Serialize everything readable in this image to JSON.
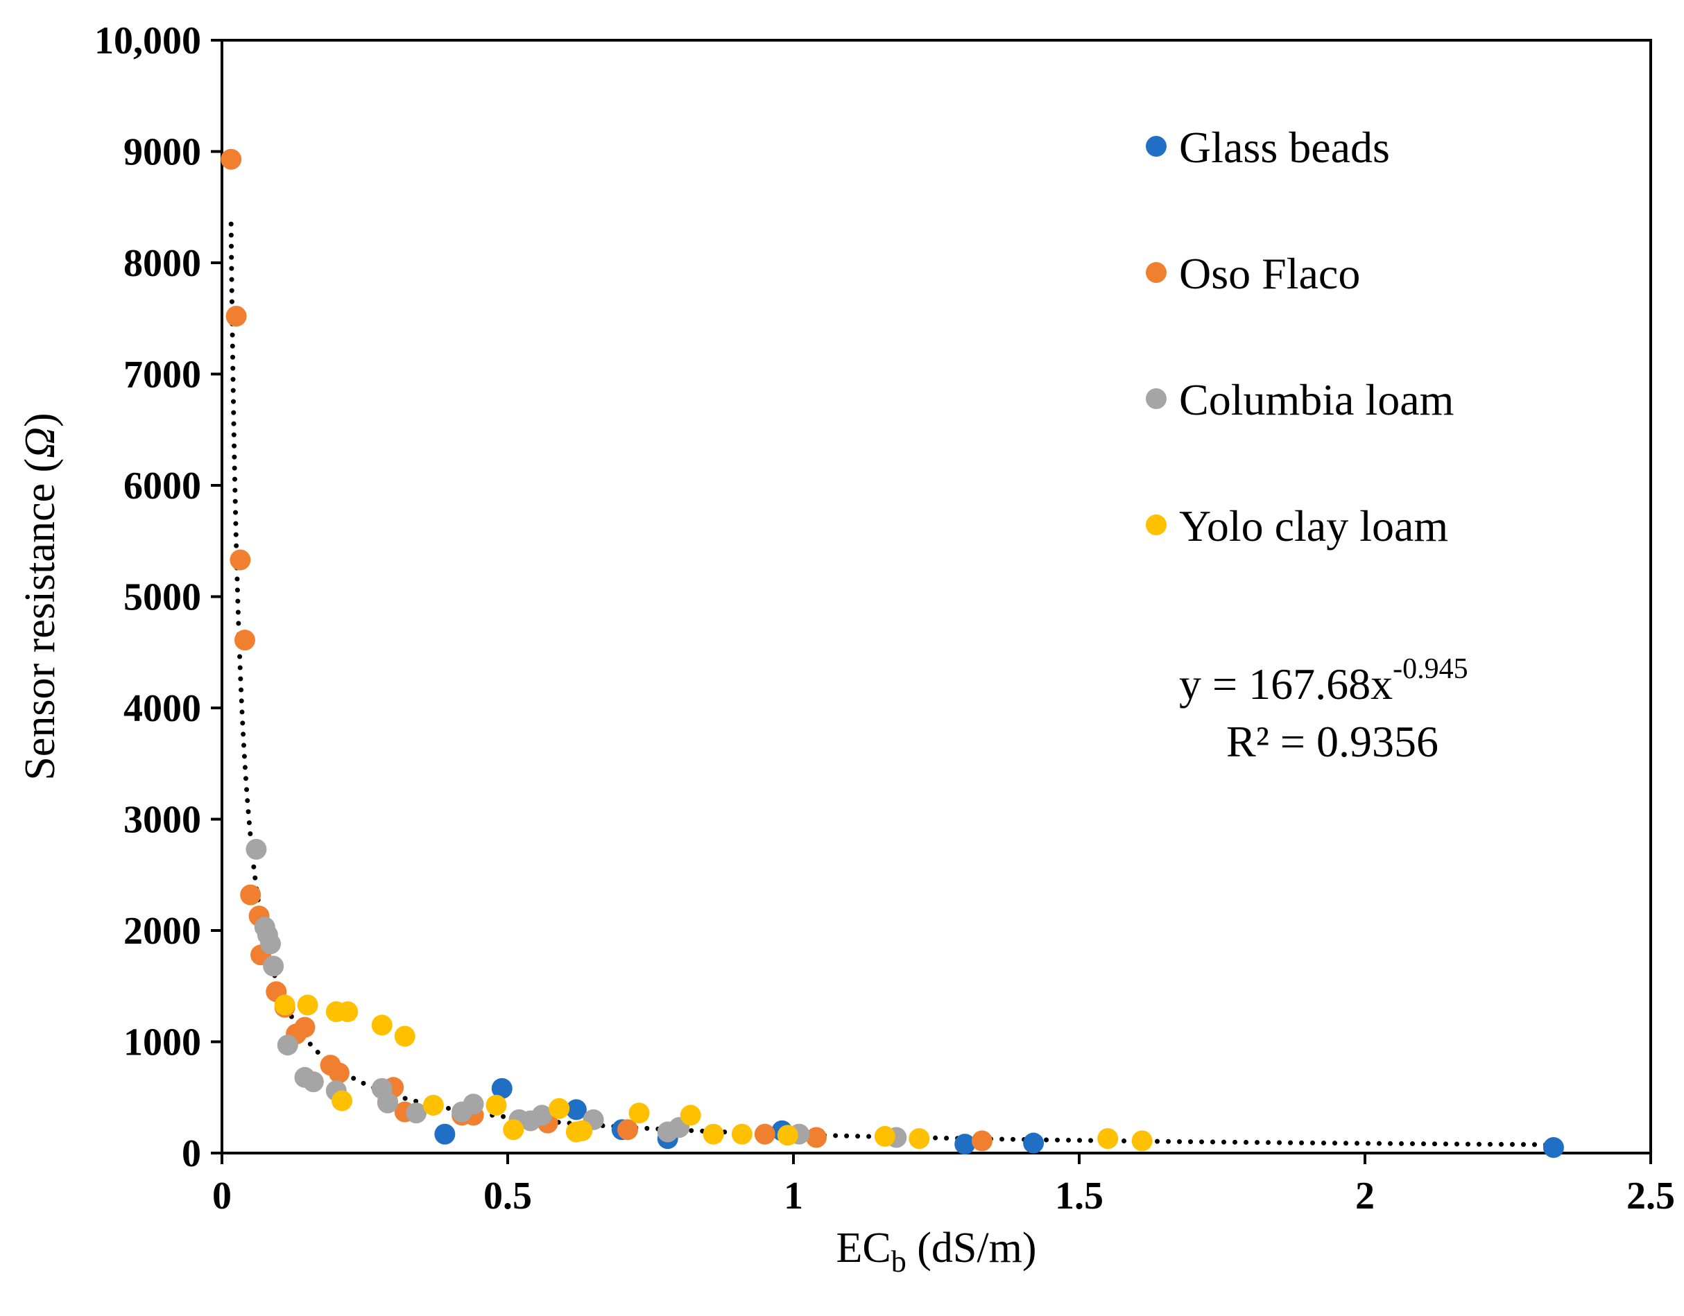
{
  "chart_data": {
    "type": "scatter",
    "xlabel_main": "EC",
    "xlabel_sub": "b",
    "xlabel_unit": " (dS/m)",
    "ylabel_main": "Sensor resistance (",
    "ylabel_omega": "Ω",
    "ylabel_close": ")",
    "xlim": [
      0,
      2.5
    ],
    "ylim": [
      0,
      10000
    ],
    "xticks": [
      0,
      0.5,
      1,
      1.5,
      2,
      2.5
    ],
    "xtick_labels": [
      "0",
      "0.5",
      "1",
      "1.5",
      "2",
      "2.5"
    ],
    "yticks": [
      0,
      1000,
      2000,
      3000,
      4000,
      5000,
      6000,
      7000,
      8000,
      9000,
      10000
    ],
    "ytick_labels": [
      "0",
      "1000",
      "2000",
      "3000",
      "4000",
      "5000",
      "6000",
      "7000",
      "8000",
      "9000",
      "10,000"
    ],
    "legend_position": "top-right",
    "trendline": {
      "type": "power",
      "a": 167.68,
      "b": -0.945,
      "x_start": 0.016,
      "x_end": 2.33,
      "equation_prefix": "y = 167.68x",
      "equation_exponent": "-0.945",
      "r2_text": "R² = 0.9356"
    },
    "series": [
      {
        "name": "Glass beads",
        "color": "#1f6fc5",
        "points": [
          [
            0.39,
            170
          ],
          [
            0.49,
            580
          ],
          [
            0.62,
            390
          ],
          [
            0.7,
            210
          ],
          [
            0.78,
            130
          ],
          [
            0.98,
            200
          ],
          [
            1.3,
            80
          ],
          [
            1.42,
            90
          ],
          [
            2.33,
            50
          ]
        ]
      },
      {
        "name": "Oso  Flaco",
        "color": "#f07f2f",
        "points": [
          [
            0.016,
            8930
          ],
          [
            0.025,
            7520
          ],
          [
            0.032,
            5330
          ],
          [
            0.04,
            4610
          ],
          [
            0.05,
            2320
          ],
          [
            0.065,
            2130
          ],
          [
            0.068,
            1780
          ],
          [
            0.095,
            1450
          ],
          [
            0.11,
            1310
          ],
          [
            0.13,
            1070
          ],
          [
            0.145,
            1130
          ],
          [
            0.19,
            790
          ],
          [
            0.205,
            720
          ],
          [
            0.3,
            590
          ],
          [
            0.29,
            460
          ],
          [
            0.32,
            370
          ],
          [
            0.42,
            340
          ],
          [
            0.44,
            340
          ],
          [
            0.57,
            270
          ],
          [
            0.71,
            210
          ],
          [
            0.95,
            170
          ],
          [
            1.04,
            140
          ],
          [
            1.33,
            110
          ]
        ]
      },
      {
        "name": "Columbia loam",
        "color": "#a5a5a5",
        "points": [
          [
            0.06,
            2730
          ],
          [
            0.075,
            2030
          ],
          [
            0.08,
            1960
          ],
          [
            0.085,
            1880
          ],
          [
            0.09,
            1680
          ],
          [
            0.115,
            970
          ],
          [
            0.145,
            680
          ],
          [
            0.16,
            640
          ],
          [
            0.2,
            560
          ],
          [
            0.28,
            580
          ],
          [
            0.29,
            450
          ],
          [
            0.34,
            360
          ],
          [
            0.42,
            370
          ],
          [
            0.44,
            440
          ],
          [
            0.52,
            300
          ],
          [
            0.54,
            290
          ],
          [
            0.56,
            340
          ],
          [
            0.65,
            300
          ],
          [
            0.78,
            190
          ],
          [
            0.8,
            230
          ],
          [
            1.01,
            170
          ],
          [
            1.18,
            140
          ]
        ]
      },
      {
        "name": "Yolo clay loam",
        "color": "#ffc000",
        "points": [
          [
            0.11,
            1330
          ],
          [
            0.15,
            1330
          ],
          [
            0.2,
            1270
          ],
          [
            0.22,
            1270
          ],
          [
            0.28,
            1150
          ],
          [
            0.32,
            1050
          ],
          [
            0.21,
            470
          ],
          [
            0.37,
            430
          ],
          [
            0.48,
            430
          ],
          [
            0.51,
            210
          ],
          [
            0.59,
            400
          ],
          [
            0.62,
            190
          ],
          [
            0.63,
            200
          ],
          [
            0.73,
            360
          ],
          [
            0.82,
            340
          ],
          [
            0.86,
            170
          ],
          [
            0.91,
            170
          ],
          [
            0.99,
            160
          ],
          [
            1.16,
            150
          ],
          [
            1.22,
            130
          ],
          [
            1.55,
            130
          ],
          [
            1.61,
            110
          ]
        ]
      }
    ]
  }
}
